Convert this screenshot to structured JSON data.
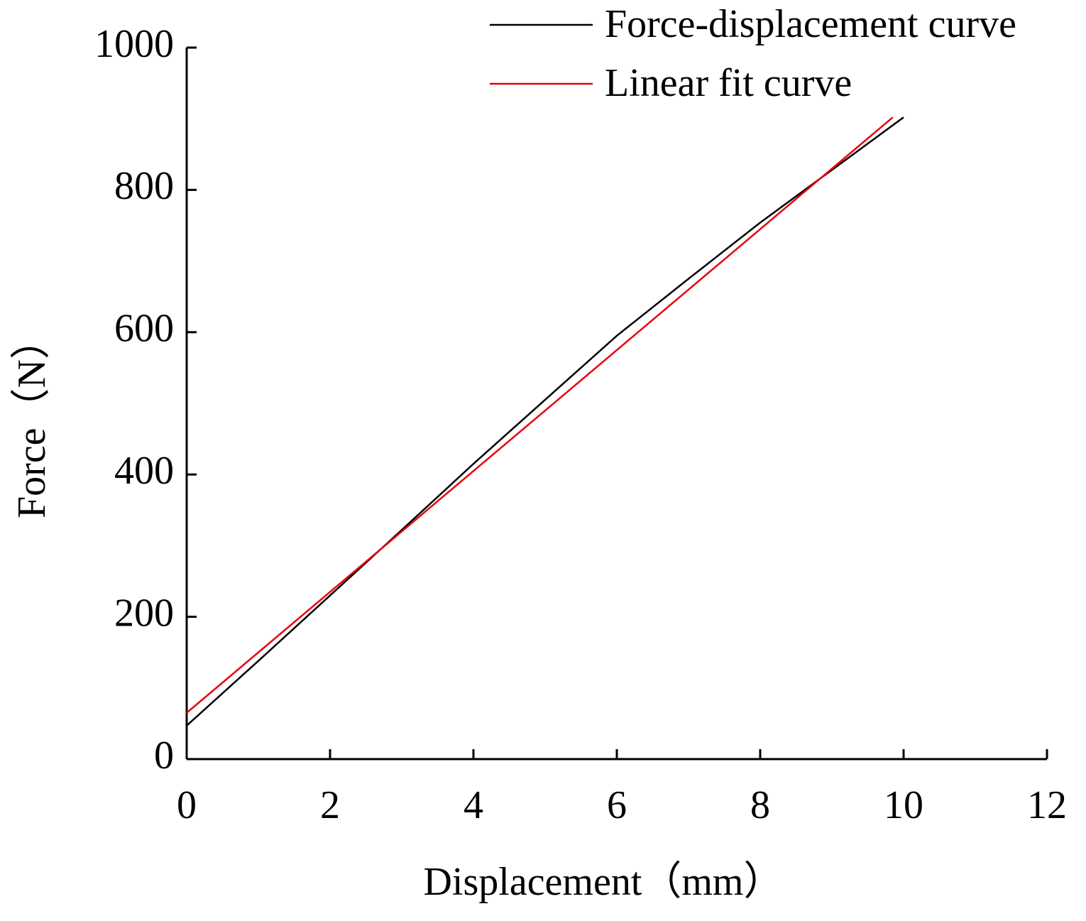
{
  "chart_data": {
    "type": "line",
    "x_label": "Displacement（mm）",
    "y_label": "Force（N）",
    "series": [
      {
        "name": "Force-displacement curve",
        "color": "#000000",
        "x": [
          0,
          1,
          2,
          3,
          4,
          5,
          6,
          7,
          8,
          9,
          10
        ],
        "values": [
          47,
          138,
          230,
          322,
          415,
          505,
          595,
          675,
          754,
          828,
          902
        ]
      },
      {
        "name": "Linear fit curve",
        "color": "#e8000b",
        "x": [
          0,
          9.85
        ],
        "values": [
          65,
          902
        ]
      }
    ],
    "xlim": [
      0,
      12
    ],
    "xticks": [
      0,
      2,
      4,
      6,
      8,
      10,
      12
    ],
    "ylim": [
      0,
      1000
    ],
    "yticks": [
      0,
      200,
      400,
      600,
      800,
      1000
    ],
    "legend": "upper right",
    "grid": false
  }
}
